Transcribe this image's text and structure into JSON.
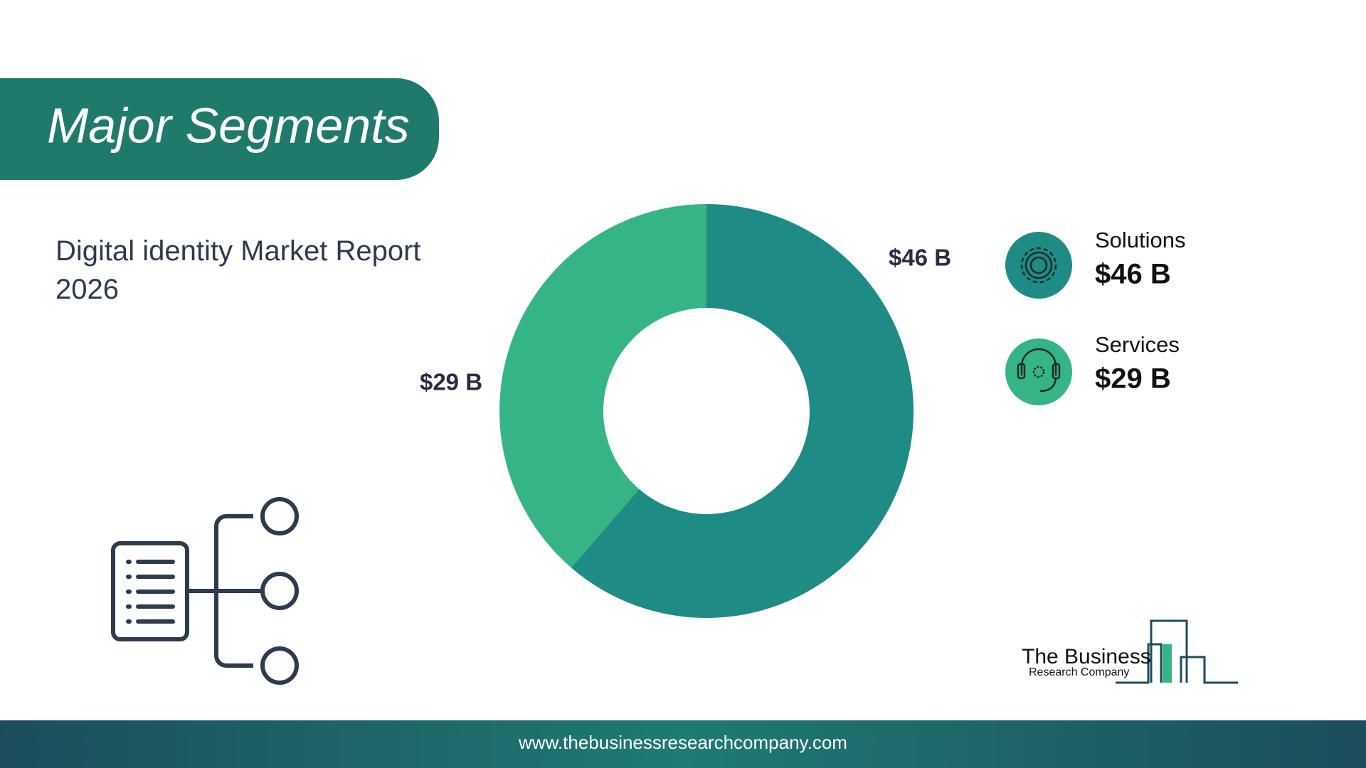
{
  "header": {
    "title": "Major Segments",
    "subtitle": "Digital identity Market Report 2026"
  },
  "chart_data": {
    "type": "donut",
    "categories": [
      "Solutions",
      "Services"
    ],
    "values": [
      46,
      29
    ],
    "value_labels": [
      "$46 B",
      "$29 B"
    ],
    "colors": [
      "#1e8c84",
      "#35b586"
    ]
  },
  "logo": {
    "line1": "The Business",
    "line2": "Research Company"
  },
  "footer": {
    "url": "www.thebusinessresearchcompany.com"
  }
}
